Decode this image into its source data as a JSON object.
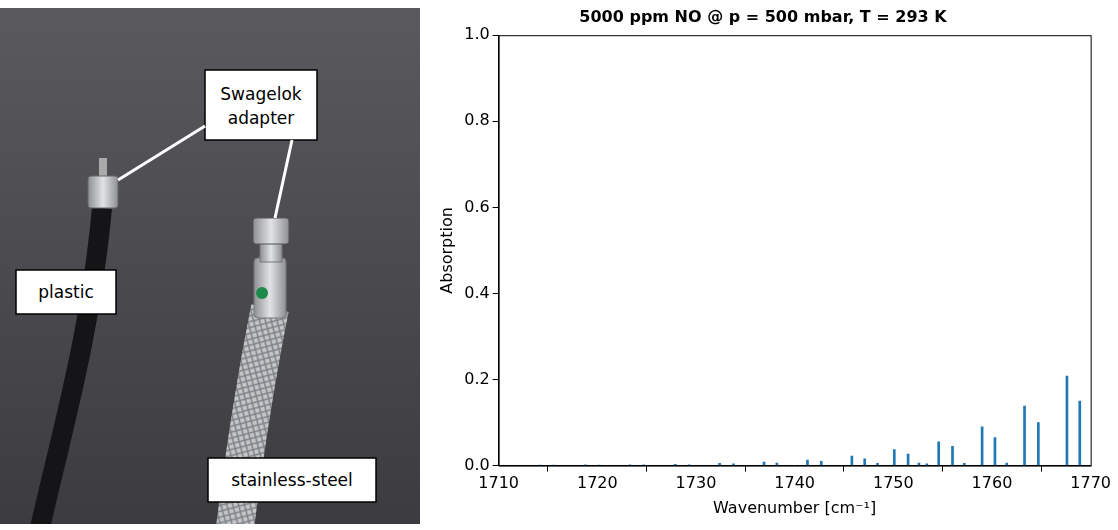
{
  "photo": {
    "labels": [
      "Swagelok adapter",
      "plastic",
      "stainless-steel"
    ]
  },
  "chart_data": {
    "type": "bar",
    "title": "5000 ppm NO @ p = 500 mbar, T = 293 K",
    "x_label": "Wavenumber [cm⁻¹]",
    "y_label": "Absorption",
    "x": [
      1714.2,
      1715.6,
      1718.8,
      1720.2,
      1723.3,
      1724.7,
      1727.9,
      1729.3,
      1732.4,
      1733.8,
      1736.9,
      1738.2,
      1741.3,
      1742.7,
      1745.8,
      1747.1,
      1748.4,
      1750.1,
      1751.5,
      1752.6,
      1753.4,
      1754.6,
      1756.0,
      1757.2,
      1759.0,
      1760.3,
      1761.5,
      1763.3,
      1764.7,
      1767.6,
      1768.9
    ],
    "values": [
      0.001,
      0.0008,
      0.0015,
      0.001,
      0.002,
      0.0015,
      0.003,
      0.002,
      0.005,
      0.004,
      0.008,
      0.006,
      0.013,
      0.01,
      0.022,
      0.016,
      0.005,
      0.037,
      0.027,
      0.006,
      0.004,
      0.055,
      0.045,
      0.005,
      0.09,
      0.065,
      0.006,
      0.138,
      0.1,
      0.208,
      0.15
    ],
    "color": "#1f77b4",
    "xlim": [
      1710,
      1770
    ],
    "xticks": [
      1710,
      1720,
      1730,
      1740,
      1750,
      1760,
      1770
    ],
    "ylim": [
      0,
      1
    ],
    "yticks": [
      {
        "value": 0,
        "label": "0.0"
      },
      0.2,
      0.4,
      0.6,
      0.8,
      {
        "value": 1,
        "label": "1.0"
      }
    ],
    "grid": false
  }
}
